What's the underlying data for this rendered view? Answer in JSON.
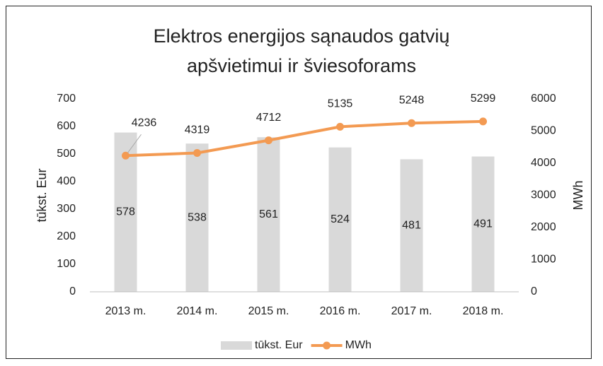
{
  "chart_data": {
    "type": "bar_line",
    "title": "Elektros energijos sąnaudos gatvių apšvietimui ir šviesoforams",
    "ylabel": "tūkst. Eur",
    "y2label": "MWh",
    "categories": [
      "2013 m.",
      "2014 m.",
      "2015 m.",
      "2016 m.",
      "2017 m.",
      "2018 m."
    ],
    "series": [
      {
        "name": "tūkst. Eur",
        "type": "bar",
        "color": "#d9d9d9",
        "values": [
          578,
          538,
          561,
          524,
          481,
          491
        ]
      },
      {
        "name": "MWh",
        "type": "line",
        "axis": "y2",
        "color": "#f39a52",
        "values": [
          4236,
          4319,
          4712,
          5135,
          5248,
          5299
        ]
      }
    ],
    "ylim": [
      0,
      700
    ],
    "yticks": [
      0,
      100,
      200,
      300,
      400,
      500,
      600,
      700
    ],
    "y2lim": [
      0,
      6000
    ],
    "y2ticks": [
      0,
      1000,
      2000,
      3000,
      4000,
      5000,
      6000
    ],
    "grid": false,
    "legend": "bottom"
  }
}
